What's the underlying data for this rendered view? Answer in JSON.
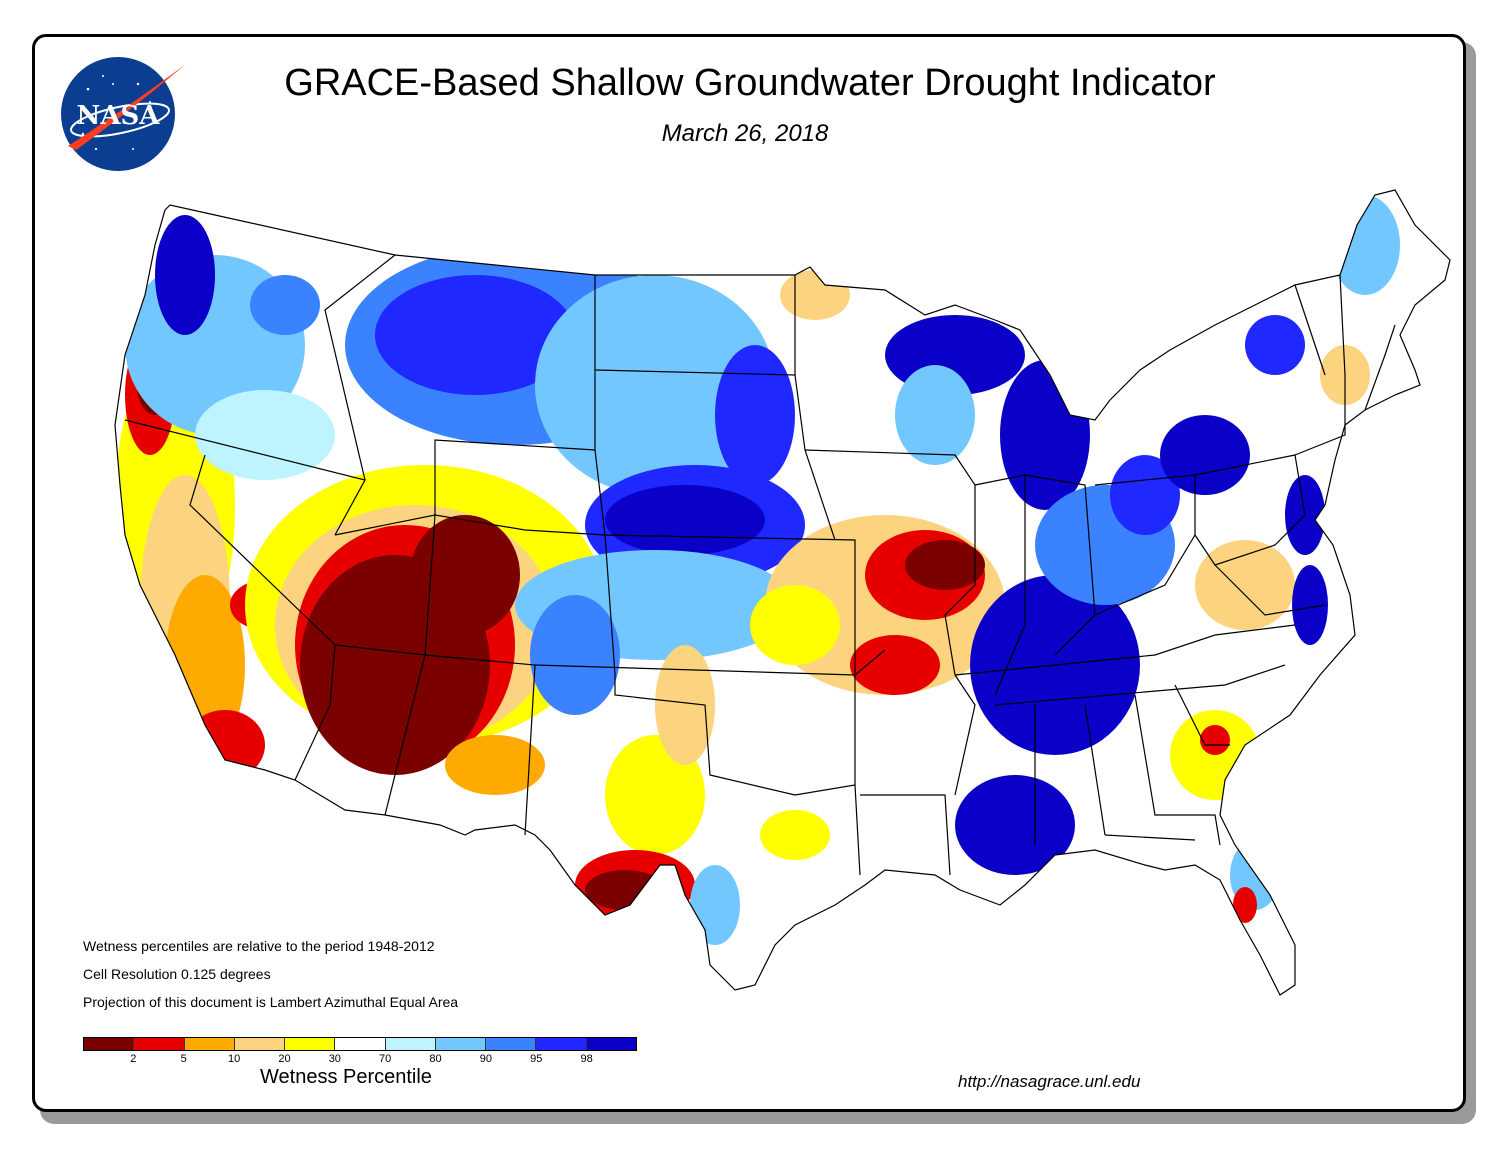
{
  "header": {
    "title": "GRACE-Based Shallow Groundwater Drought Indicator",
    "date": "March 26, 2018"
  },
  "logo": {
    "text": "NASA",
    "icon": "nasa-meatball-logo"
  },
  "notes": [
    "Wetness percentiles are relative to the period 1948-2012",
    "Cell Resolution 0.125 degrees",
    "Projection of this document is Lambert Azimuthal Equal Area"
  ],
  "legend": {
    "title": "Wetness Percentile",
    "ticks": [
      "2",
      "5",
      "10",
      "20",
      "30",
      "70",
      "80",
      "90",
      "95",
      "98"
    ],
    "colors": [
      "#7b0000",
      "#e60000",
      "#ffaa00",
      "#fcd37f",
      "#ffff00",
      "#ffffff",
      "#bef4ff",
      "#73c7ff",
      "#3a82ff",
      "#1e28ff",
      "#0a00c8"
    ]
  },
  "footer": {
    "url": "http://nasagrace.unl.edu"
  }
}
